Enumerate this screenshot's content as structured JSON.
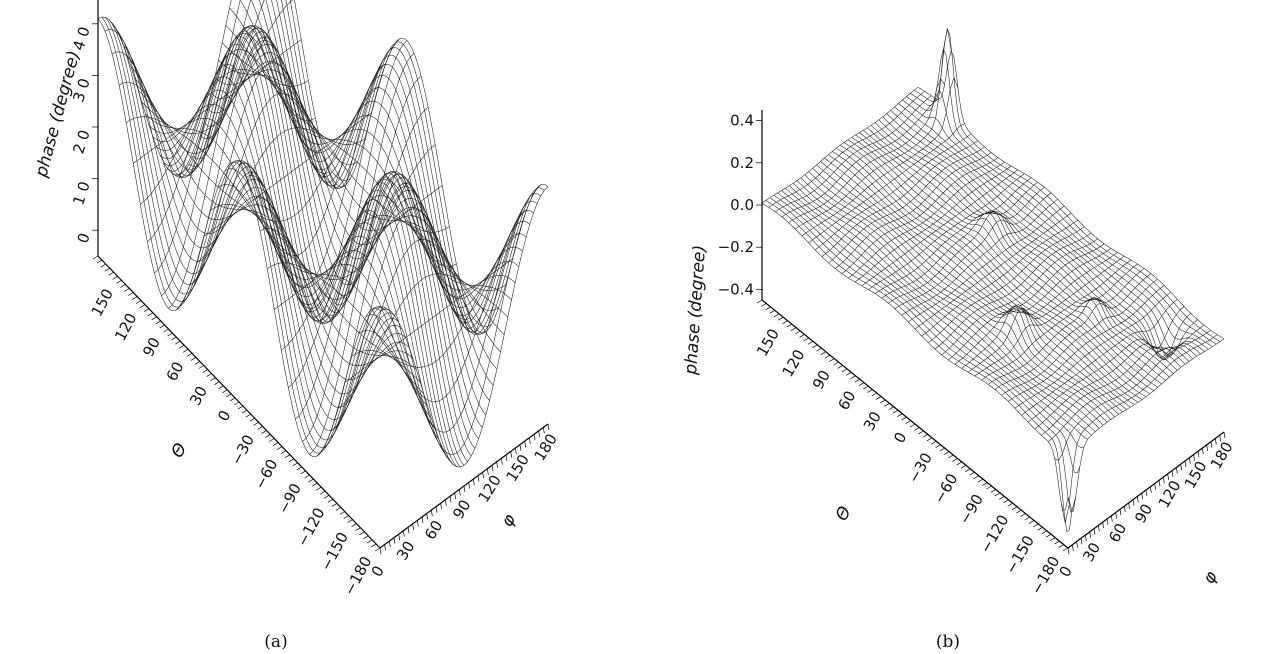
{
  "chart_data": [
    {
      "panel": "(a)",
      "type": "surface",
      "zlabel": "phase (degree)",
      "xlabel": "Θ",
      "ylabel": "φ",
      "x_ticks": [
        "150",
        "120",
        "90",
        "60",
        "30",
        "0",
        "−30",
        "−60",
        "−90",
        "−120",
        "−150",
        "−180"
      ],
      "y_ticks": [
        "0",
        "30",
        "60",
        "90",
        "120",
        "150",
        "180"
      ],
      "z_ticks": [
        "0",
        "1 0",
        "2 0",
        "3 0",
        "4 0"
      ],
      "xlim": [
        -180,
        180
      ],
      "ylim": [
        0,
        180
      ],
      "zlim": [
        -5,
        45
      ]
    },
    {
      "panel": "(b)",
      "type": "surface",
      "zlabel": "phase (degree)",
      "xlabel": "Θ",
      "ylabel": "φ",
      "x_ticks": [
        "150",
        "120",
        "90",
        "60",
        "30",
        "0",
        "−30",
        "−60",
        "−90",
        "−120",
        "−150",
        "−180"
      ],
      "y_ticks": [
        "0",
        "30",
        "60",
        "90",
        "120",
        "150",
        "180"
      ],
      "z_ticks": [
        "0.4",
        "0.2",
        "0.0",
        "−0.2",
        "−0.4"
      ],
      "xlim": [
        -180,
        180
      ],
      "ylim": [
        0,
        180
      ],
      "zlim": [
        -0.45,
        0.45
      ]
    }
  ]
}
